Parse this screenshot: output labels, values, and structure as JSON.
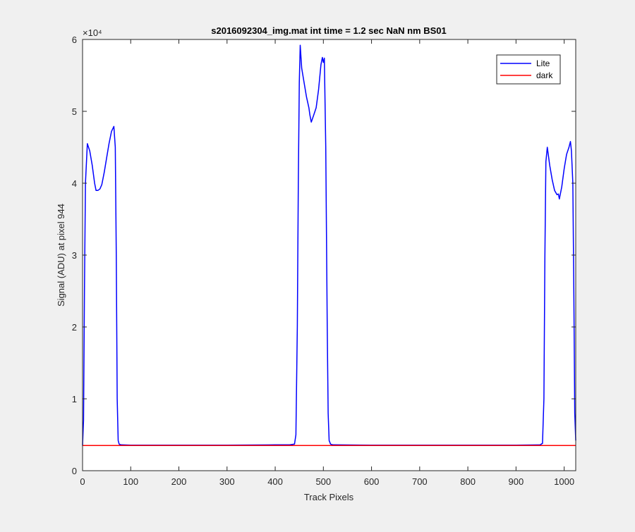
{
  "chart_data": {
    "type": "line",
    "title": "s2016092304_img.mat int time = 1.2 sec  NaN nm BS01",
    "xlabel": "Track Pixels",
    "ylabel": "Signal (ADU) at pixel 944",
    "exponent_label": "×10⁴",
    "xlim": [
      0,
      1024
    ],
    "ylim": [
      0,
      60000
    ],
    "x_ticks": [
      0,
      100,
      200,
      300,
      400,
      500,
      600,
      700,
      800,
      900,
      1000
    ],
    "y_ticks": [
      0,
      10000,
      20000,
      30000,
      40000,
      50000,
      60000
    ],
    "y_tick_labels": [
      "0",
      "1",
      "2",
      "3",
      "4",
      "5",
      "6"
    ],
    "grid": false,
    "legend_position": "top-right",
    "series": [
      {
        "name": "Lite",
        "color": "#0000ff",
        "x": [
          0,
          2,
          4,
          6,
          10,
          15,
          20,
          25,
          28,
          32,
          36,
          40,
          45,
          50,
          55,
          60,
          65,
          68,
          70,
          72,
          74,
          76,
          80,
          100,
          200,
          300,
          400,
          430,
          440,
          443,
          446,
          448,
          450,
          452,
          455,
          460,
          465,
          470,
          472,
          475,
          480,
          485,
          490,
          495,
          498,
          500,
          502,
          505,
          508,
          510,
          512,
          515,
          520,
          600,
          700,
          800,
          900,
          950,
          955,
          958,
          960,
          962,
          965,
          970,
          975,
          980,
          985,
          988,
          990,
          995,
          1000,
          1005,
          1010,
          1013,
          1015,
          1018,
          1020,
          1022,
          1024
        ],
        "y": [
          3500,
          7000,
          25000,
          40000,
          45500,
          44500,
          42500,
          40000,
          39000,
          39000,
          39200,
          39800,
          41500,
          43500,
          45500,
          47200,
          47900,
          45000,
          30000,
          10000,
          4200,
          3700,
          3600,
          3550,
          3550,
          3550,
          3600,
          3600,
          3700,
          5000,
          20000,
          40000,
          54000,
          59200,
          56000,
          54000,
          52000,
          50500,
          49500,
          48500,
          49500,
          50500,
          53000,
          56500,
          57500,
          56800,
          57400,
          45000,
          20000,
          8000,
          4200,
          3700,
          3600,
          3550,
          3550,
          3550,
          3550,
          3600,
          3800,
          10000,
          30000,
          43000,
          45000,
          42500,
          40500,
          39000,
          38400,
          38500,
          37800,
          39500,
          42000,
          44000,
          45000,
          45800,
          44500,
          40000,
          25000,
          8000,
          4200
        ]
      },
      {
        "name": "dark",
        "color": "#ff0000",
        "x": [
          0,
          1024
        ],
        "y": [
          3500,
          3500
        ]
      }
    ]
  }
}
